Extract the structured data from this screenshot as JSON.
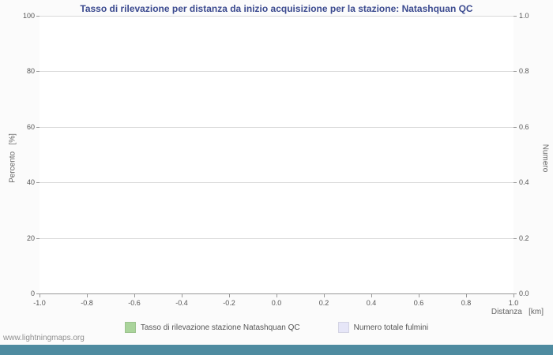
{
  "page": {
    "watermark": "www.lightningmaps.org"
  },
  "chart_data": {
    "type": "line",
    "title": "Tasso di rilevazione per distanza da inizio acquisizione per la stazione: Natashquan QC",
    "xlabel": "Distanza   [km]",
    "ylabel_left": "Percento   [%]",
    "ylabel_right": "Numero",
    "xlim": [
      -1.0,
      1.0
    ],
    "ylim_left": [
      0,
      100
    ],
    "ylim_right": [
      0.0,
      1.0
    ],
    "x_ticks": [
      "-1.0",
      "-0.8",
      "-0.6",
      "-0.4",
      "-0.2",
      "0.0",
      "0.2",
      "0.4",
      "0.6",
      "0.8",
      "1.0"
    ],
    "y_left_ticks": [
      "0",
      "20",
      "40",
      "60",
      "80",
      "100"
    ],
    "y_right_ticks": [
      "0.0",
      "0.2",
      "0.4",
      "0.6",
      "0.8",
      "1.0"
    ],
    "grid": "horizontal-only",
    "legend_position": "bottom-center",
    "series": [],
    "note": "no data plotted - empty chart",
    "legend": [
      {
        "label": "Tasso di rilevazione stazione Natashquan QC",
        "color": "#aad49b"
      },
      {
        "label": "Numero totale fulmini",
        "color": "#e6e6f8"
      }
    ],
    "colors": {
      "title": "#3b4a8f",
      "axis_text": "#555555",
      "gridline": "#d9d9d9",
      "axis_line": "#999999",
      "plot_bg": "#ffffff",
      "footer_bar": "#4e8ba0"
    }
  }
}
